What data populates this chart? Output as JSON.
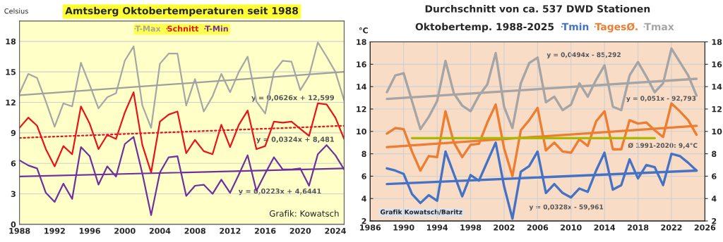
{
  "chart_data": [
    {
      "type": "line",
      "title": "Amtsberg Oktobertemperaturen seit 1988",
      "ylabel": "Celsius",
      "x": [
        1988,
        1989,
        1990,
        1991,
        1992,
        1993,
        1994,
        1995,
        1996,
        1997,
        1998,
        1999,
        2000,
        2001,
        2002,
        2003,
        2004,
        2005,
        2006,
        2007,
        2008,
        2009,
        2010,
        2011,
        2012,
        2013,
        2014,
        2015,
        2016,
        2017,
        2018,
        2019,
        2020,
        2021,
        2022,
        2023,
        2024,
        2025
      ],
      "series": [
        {
          "name": "T-Max",
          "color": "#a6a6a6",
          "values": [
            12.9,
            14.8,
            14.4,
            12.1,
            9.6,
            11.9,
            11.6,
            15.9,
            13.7,
            11.4,
            12.5,
            12.9,
            16.1,
            17.5,
            11.7,
            9.5,
            15.8,
            16.8,
            16.8,
            11.7,
            14.3,
            11.1,
            12.6,
            14.8,
            13.0,
            15.0,
            16.5,
            12.1,
            10.9,
            15.0,
            16.1,
            16.0,
            13.2,
            14.6,
            17.9,
            16.5,
            15.0,
            12.2
          ]
        },
        {
          "name": "Schnitt",
          "color": "#e8141c",
          "values": [
            9.5,
            10.5,
            9.7,
            7.4,
            5.7,
            7.7,
            6.9,
            11.6,
            9.9,
            7.4,
            8.8,
            8.4,
            11.0,
            13.0,
            7.8,
            5.1,
            10.1,
            10.8,
            11.1,
            7.0,
            8.3,
            7.2,
            6.9,
            9.8,
            7.6,
            9.8,
            11.2,
            7.4,
            7.7,
            10.1,
            10.0,
            10.1,
            9.4,
            8.7,
            11.9,
            11.8,
            10.5,
            8.4
          ]
        },
        {
          "name": "T-Min",
          "color": "#7030a0",
          "values": [
            6.3,
            5.8,
            5.5,
            3.1,
            2.2,
            4.0,
            2.5,
            7.6,
            6.7,
            3.9,
            5.7,
            4.7,
            7.9,
            8.6,
            5.0,
            0.9,
            5.1,
            6.6,
            6.7,
            2.8,
            3.8,
            3.9,
            3.0,
            4.4,
            3.1,
            4.9,
            6.8,
            3.3,
            5.0,
            6.6,
            5.4,
            5.4,
            5.5,
            3.8,
            6.9,
            7.8,
            6.8,
            5.4
          ]
        },
        {
          "type": "line",
          "color": "#a0a0a0",
          "x": [
            1988,
            2025
          ],
          "values": [
            12.7,
            15.0
          ],
          "line_style": "solid"
        },
        {
          "type": "line",
          "color": "#e8141c",
          "x": [
            1988,
            2025
          ],
          "values": [
            8.5,
            9.7
          ],
          "line_style": "dotted"
        },
        {
          "type": "line",
          "color": "#7030a0",
          "x": [
            1988,
            2025
          ],
          "values": [
            4.7,
            5.5
          ],
          "line_style": "solid"
        }
      ],
      "xlim": [
        1988,
        2025
      ],
      "xticks": [
        1988,
        1992,
        1996,
        2000,
        2004,
        2008,
        2012,
        2016,
        2020,
        2024
      ],
      "ylim": [
        0,
        20
      ],
      "yticks": [
        0,
        3,
        6,
        9,
        12,
        15,
        18
      ],
      "grid": "y",
      "legend": "top",
      "marker": "none",
      "line_style": "solid",
      "annotations": [
        "y = 0,0626x + 12,599",
        "y = 0,0324x + 8,481",
        "y = 0,0223x + 4,6441",
        "Grafik: Kowatsch"
      ]
    },
    {
      "type": "line",
      "title": "Durchschnitt von ca. 537 DWD Stationen",
      "subtitle": "Oktobertemp. 1988-2025",
      "ylabel": "°C",
      "x": [
        1988,
        1989,
        1990,
        1991,
        1992,
        1993,
        1994,
        1995,
        1996,
        1997,
        1998,
        1999,
        2000,
        2001,
        2002,
        2003,
        2004,
        2005,
        2006,
        2007,
        2008,
        2009,
        2010,
        2011,
        2012,
        2013,
        2014,
        2015,
        2016,
        2017,
        2018,
        2019,
        2020,
        2021,
        2022,
        2023,
        2024,
        2025
      ],
      "series": [
        {
          "name": "Tmin",
          "color": "#4472c4",
          "values": [
            6.7,
            6.5,
            6.2,
            4.4,
            3.6,
            4.3,
            3.8,
            8.2,
            6.2,
            4.2,
            6.1,
            5.6,
            7.3,
            9.0,
            5.1,
            2.2,
            6.4,
            6.9,
            8.2,
            4.5,
            5.3,
            4.5,
            4.1,
            4.9,
            4.6,
            6.5,
            8.1,
            4.8,
            5.2,
            7.5,
            5.8,
            7.0,
            6.8,
            5.2,
            8.0,
            7.8,
            7.2,
            6.5
          ]
        },
        {
          "name": "TagesØ.",
          "color": "#ed7d31",
          "values": [
            9.8,
            10.3,
            10.2,
            8.2,
            6.5,
            7.8,
            7.7,
            11.8,
            9.0,
            7.7,
            8.8,
            8.9,
            10.8,
            12.4,
            8.5,
            6.0,
            10.1,
            11.0,
            12.1,
            8.3,
            9.0,
            8.2,
            8.1,
            9.3,
            8.7,
            10.9,
            11.8,
            8.4,
            8.4,
            11.0,
            10.7,
            10.8,
            10.1,
            9.5,
            12.5,
            11.8,
            11.0,
            9.7
          ]
        },
        {
          "name": "Tmax",
          "color": "#a5a5a5",
          "values": [
            13.5,
            15.0,
            15.2,
            12.7,
            10.2,
            11.3,
            12.7,
            16.3,
            13.4,
            12.3,
            11.8,
            13.2,
            14.2,
            17.0,
            12.2,
            10.3,
            14.3,
            16.1,
            16.6,
            12.6,
            13.1,
            11.9,
            12.4,
            14.3,
            13.1,
            14.6,
            15.9,
            12.2,
            11.9,
            15.0,
            16.2,
            14.9,
            13.5,
            14.3,
            17.4,
            16.2,
            15.0,
            13.2
          ]
        },
        {
          "type": "line",
          "color": "#a5a5a5",
          "x": [
            1988,
            2025
          ],
          "values": [
            12.9,
            14.7
          ]
        },
        {
          "type": "line",
          "color": "#ed7d31",
          "x": [
            1988,
            2025
          ],
          "values": [
            8.6,
            10.5
          ]
        },
        {
          "type": "line",
          "color": "#4472c4",
          "x": [
            1988,
            2025
          ],
          "values": [
            5.3,
            6.5
          ]
        },
        {
          "type": "line",
          "color": "#a9b800",
          "x": [
            1991,
            2020
          ],
          "values": [
            9.4,
            9.4
          ]
        }
      ],
      "xlim": [
        1986,
        2026
      ],
      "xticks": [
        1986,
        1990,
        1994,
        1998,
        2002,
        2006,
        2010,
        2014,
        2018,
        2022,
        2026
      ],
      "ylim": [
        2,
        18
      ],
      "yticks": [
        2,
        4,
        6,
        8,
        10,
        12,
        14,
        16,
        18
      ],
      "y2lim": [
        2,
        18
      ],
      "y2ticks": [
        2,
        4,
        6,
        8,
        10,
        12,
        14,
        16,
        18
      ],
      "grid": true,
      "legend": "top",
      "marker": "none",
      "line_style": "solid",
      "annotations": [
        "y = 0,0494x - 85,292",
        "y = 0,051x - 92,793",
        "y = 0,0328x - 59,961",
        "Ø 1991-2020: 9,4°C",
        "Grafik Kowatsch/Baritz"
      ]
    }
  ]
}
